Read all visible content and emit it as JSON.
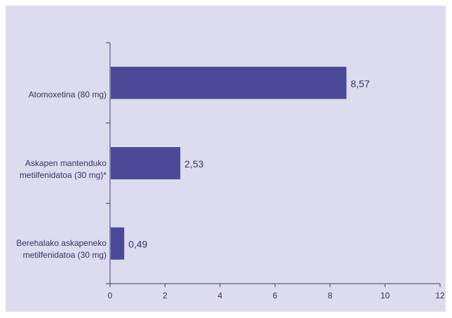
{
  "chart_data": {
    "type": "bar",
    "orientation": "horizontal",
    "categories": [
      [
        "Atomoxetina (80 mg)"
      ],
      [
        "Askapen mantenduko",
        "metilfenidatoa (30 mg)*"
      ],
      [
        "Berehalako askapeneko",
        "metilfenidatoa (30 mg)"
      ]
    ],
    "values": [
      8.57,
      2.53,
      0.49
    ],
    "value_labels": [
      "8,57",
      "2,53",
      "0,49"
    ],
    "xlim": [
      0,
      12
    ],
    "xticks": [
      "0",
      "2",
      "4",
      "6",
      "8",
      "10",
      "12"
    ],
    "bar_color": "#4a4a96",
    "axis_color": "#3a3a80",
    "background_color": "#dddcee",
    "grid": false,
    "legend": false
  }
}
